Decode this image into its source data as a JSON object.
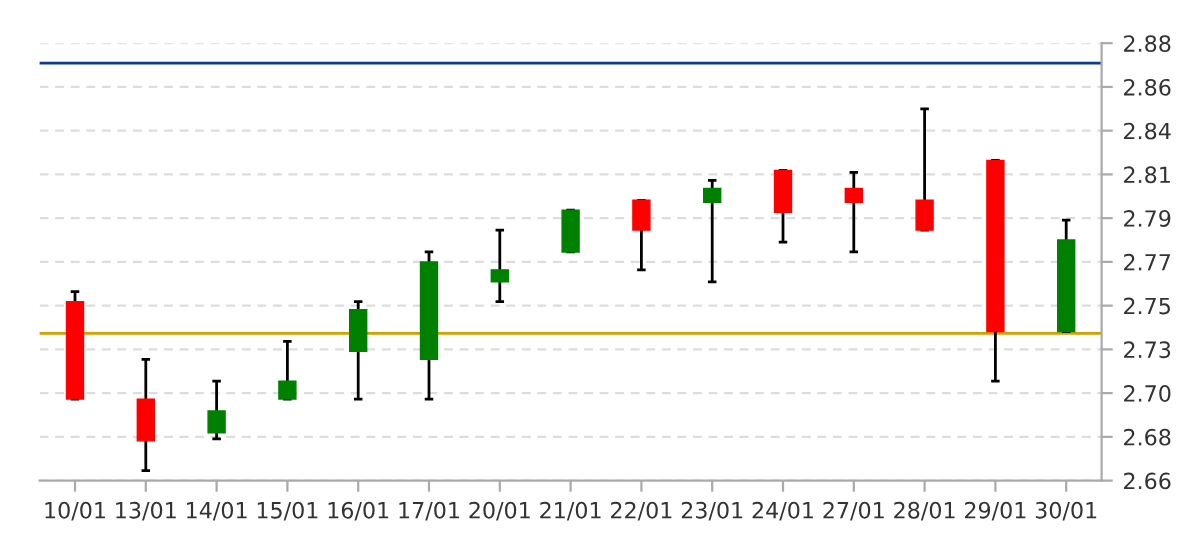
{
  "chart_data": {
    "type": "candlestick",
    "categories": [
      "10/01",
      "13/01",
      "14/01",
      "15/01",
      "16/01",
      "17/01",
      "20/01",
      "21/01",
      "22/01",
      "23/01",
      "24/01",
      "27/01",
      "28/01",
      "29/01",
      "30/01"
    ],
    "ohlc": [
      [
        2.75,
        2.755,
        2.701,
        2.701
      ],
      [
        2.701,
        2.721,
        2.665,
        2.68
      ],
      [
        2.684,
        2.71,
        2.681,
        2.695
      ],
      [
        2.701,
        2.73,
        2.701,
        2.71
      ],
      [
        2.725,
        2.75,
        2.701,
        2.746
      ],
      [
        2.721,
        2.775,
        2.701,
        2.77
      ],
      [
        2.76,
        2.786,
        2.75,
        2.766
      ],
      [
        2.775,
        2.796,
        2.775,
        2.796
      ],
      [
        2.801,
        2.801,
        2.766,
        2.786
      ],
      [
        2.8,
        2.811,
        2.76,
        2.807
      ],
      [
        2.816,
        2.816,
        2.78,
        2.795
      ],
      [
        2.807,
        2.815,
        2.775,
        2.8
      ],
      [
        2.801,
        2.847,
        2.786,
        2.786
      ],
      [
        2.821,
        2.821,
        2.71,
        2.735
      ],
      [
        2.735,
        2.791,
        2.735,
        2.781
      ]
    ],
    "colors": [
      "#ff0000",
      "#ff0000",
      "#008000",
      "#008000",
      "#008000",
      "#008000",
      "#008000",
      "#008000",
      "#ff0000",
      "#008000",
      "#ff0000",
      "#ff0000",
      "#ff0000",
      "#ff0000",
      "#008000"
    ],
    "ylim": [
      2.66,
      2.88
    ],
    "yticks": [
      {
        "value": 2.66,
        "label": "2.66"
      },
      {
        "value": 2.682,
        "label": "2.68"
      },
      {
        "value": 2.704,
        "label": "2.70"
      },
      {
        "value": 2.726,
        "label": "2.73"
      },
      {
        "value": 2.748,
        "label": "2.75"
      },
      {
        "value": 2.77,
        "label": "2.77"
      },
      {
        "value": 2.792,
        "label": "2.79"
      },
      {
        "value": 2.814,
        "label": "2.81"
      },
      {
        "value": 2.836,
        "label": "2.84"
      },
      {
        "value": 2.858,
        "label": "2.86"
      },
      {
        "value": 2.88,
        "label": "2.88"
      }
    ],
    "grid": "y",
    "ref_lines": [
      {
        "axis": "y",
        "value": 2.87,
        "color": "#0a3c8c"
      },
      {
        "axis": "y",
        "value": 2.734,
        "color": "#d4a000"
      }
    ]
  }
}
